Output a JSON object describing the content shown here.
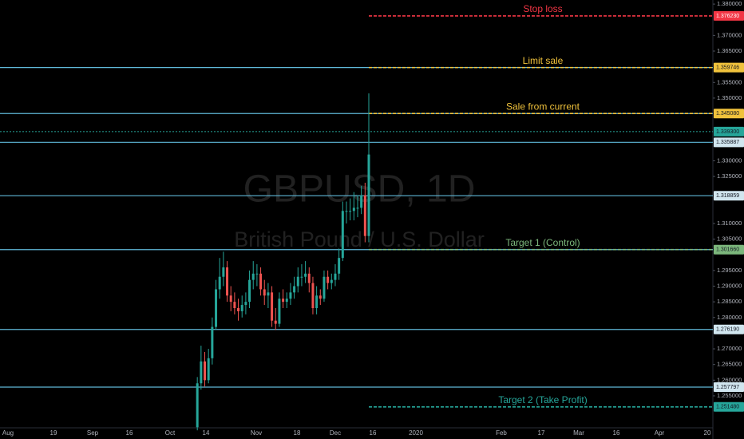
{
  "chart_data": {
    "type": "candlestick",
    "watermark_title": "GBPUSD, 1D",
    "watermark_subtitle": "British Pound / U.S. Dollar",
    "up_color": "#26a69a",
    "down_color": "#ef5350",
    "ylim": [
      1.2448,
      1.3813
    ],
    "yticks": [
      {
        "value": 1.38,
        "label": "1.380000"
      },
      {
        "value": 1.37,
        "label": "1.370000"
      },
      {
        "value": 1.365,
        "label": "1.365000"
      },
      {
        "value": 1.355,
        "label": "1.355000"
      },
      {
        "value": 1.35,
        "label": "1.350000"
      },
      {
        "value": 1.33,
        "label": "1.330000"
      },
      {
        "value": 1.325,
        "label": "1.325000"
      },
      {
        "value": 1.31,
        "label": "1.310000"
      },
      {
        "value": 1.305,
        "label": "1.305000"
      },
      {
        "value": 1.295,
        "label": "1.295000"
      },
      {
        "value": 1.29,
        "label": "1.290000"
      },
      {
        "value": 1.285,
        "label": "1.285000"
      },
      {
        "value": 1.28,
        "label": "1.280000"
      },
      {
        "value": 1.27,
        "label": "1.270000"
      },
      {
        "value": 1.265,
        "label": "1.265000"
      },
      {
        "value": 1.26,
        "label": "1.260000"
      },
      {
        "value": 1.255,
        "label": "1.255000"
      }
    ],
    "x_labels": [
      "Aug",
      "19",
      "Sep",
      "16",
      "Oct",
      "14",
      "Nov",
      "18",
      "Dec",
      "16",
      "2020",
      "Feb",
      "17",
      "Mar",
      "16",
      "Apr",
      "20"
    ],
    "open": [
      1.245,
      1.259,
      1.266,
      1.26,
      1.267,
      1.277,
      1.289,
      1.293,
      1.296,
      1.287,
      1.285,
      1.283,
      1.282,
      1.284,
      1.285,
      1.292,
      1.294,
      1.294,
      1.289,
      1.287,
      1.288,
      1.279,
      1.278,
      1.286,
      1.285,
      1.286,
      1.288,
      1.29,
      1.293,
      1.293,
      1.294,
      1.291,
      1.283,
      1.287,
      1.286,
      1.293,
      1.291,
      1.292,
      1.294,
      1.299,
      1.314,
      1.314,
      1.314,
      1.315,
      1.315,
      1.319,
      1.306
    ],
    "high": [
      1.261,
      1.271,
      1.269,
      1.27,
      1.28,
      1.292,
      1.299,
      1.301,
      1.298,
      1.29,
      1.288,
      1.286,
      1.287,
      1.288,
      1.295,
      1.298,
      1.297,
      1.296,
      1.292,
      1.291,
      1.29,
      1.283,
      1.288,
      1.289,
      1.288,
      1.291,
      1.293,
      1.296,
      1.297,
      1.298,
      1.296,
      1.293,
      1.29,
      1.289,
      1.295,
      1.295,
      1.294,
      1.297,
      1.302,
      1.317,
      1.317,
      1.318,
      1.32,
      1.319,
      1.322,
      1.323,
      1.3515
    ],
    "low": [
      1.244,
      1.257,
      1.258,
      1.259,
      1.265,
      1.276,
      1.286,
      1.29,
      1.285,
      1.282,
      1.281,
      1.279,
      1.28,
      1.281,
      1.283,
      1.289,
      1.29,
      1.287,
      1.284,
      1.283,
      1.277,
      1.276,
      1.277,
      1.283,
      1.283,
      1.284,
      1.286,
      1.288,
      1.29,
      1.291,
      1.288,
      1.281,
      1.281,
      1.284,
      1.285,
      1.289,
      1.289,
      1.29,
      1.292,
      1.298,
      1.31,
      1.311,
      1.311,
      1.312,
      1.313,
      1.304,
      1.304
    ],
    "close": [
      1.259,
      1.266,
      1.26,
      1.267,
      1.277,
      1.289,
      1.293,
      1.296,
      1.287,
      1.285,
      1.283,
      1.282,
      1.284,
      1.285,
      1.292,
      1.294,
      1.294,
      1.289,
      1.287,
      1.288,
      1.279,
      1.278,
      1.286,
      1.285,
      1.286,
      1.288,
      1.29,
      1.293,
      1.293,
      1.294,
      1.291,
      1.283,
      1.287,
      1.286,
      1.293,
      1.291,
      1.292,
      1.294,
      1.299,
      1.314,
      1.314,
      1.314,
      1.315,
      1.315,
      1.319,
      1.306,
      1.332
    ],
    "levels": [
      {
        "value": 1.37623,
        "label": "1.376230",
        "text": "Stop loss",
        "color": "#f23645",
        "style": "dashed",
        "hline": false
      },
      {
        "value": 1.359746,
        "label": "1.359746",
        "text": "Limit sale",
        "color": "#f0c23c",
        "style": "dashed",
        "hline": true
      },
      {
        "value": 1.34508,
        "label": "1.345080",
        "text": "Sale from current",
        "color": "#f0c23c",
        "style": "dashed",
        "hline": true
      },
      {
        "value": 1.3393,
        "label": "1.339300",
        "color": "#26a69a",
        "style": "dotted",
        "hline": false
      },
      {
        "value": 1.335887,
        "label": "1.335887",
        "color": "#d1e6ef",
        "style": "solid",
        "hline": true
      },
      {
        "value": 1.318859,
        "label": "1.318859",
        "color": "#d1e6ef",
        "style": "solid",
        "hline": true
      },
      {
        "value": 1.30166,
        "label": "1.301660",
        "text": "Target 1 (Control)",
        "color": "#7cb77c",
        "style": "dashed",
        "hline": true
      },
      {
        "value": 1.27619,
        "label": "1.276190",
        "color": "#d1e6ef",
        "style": "solid",
        "hline": true
      },
      {
        "value": 1.257797,
        "label": "1.257797",
        "color": "#d1e6ef",
        "style": "solid",
        "hline": true
      },
      {
        "value": 1.25148,
        "label": "1.251480",
        "text": "Target 2 (Take Profit)",
        "color": "#26a69a",
        "style": "dashed",
        "hline": false
      }
    ]
  }
}
